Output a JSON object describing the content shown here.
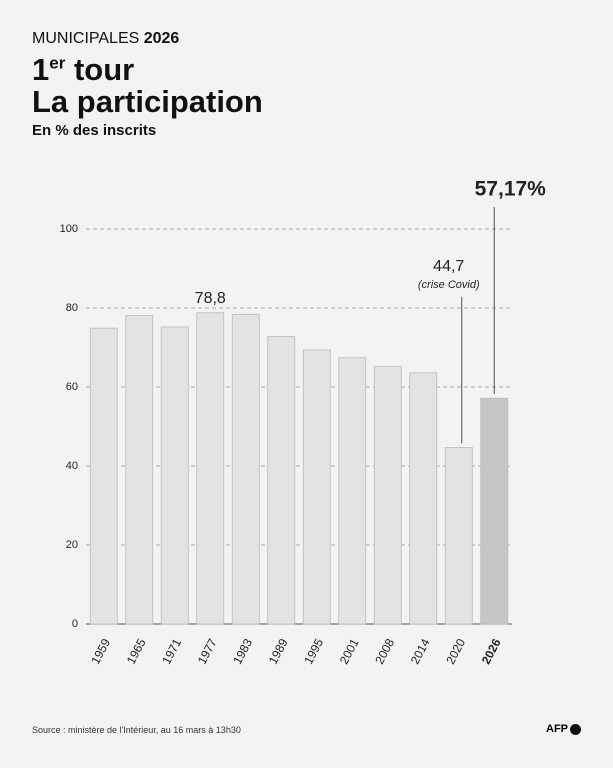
{
  "header": {
    "kicker": "MUNICIPALES",
    "kicker_year": "2026",
    "title_number": "1",
    "title_sup": "er",
    "title_rest": "tour",
    "title2": "La participation",
    "subtitle": "En % des inscrits"
  },
  "chart_data": {
    "type": "bar",
    "categories": [
      "1959",
      "1965",
      "1971",
      "1977",
      "1983",
      "1989",
      "1995",
      "2001",
      "2008",
      "2014",
      "2020",
      "2026"
    ],
    "values": [
      74.9,
      78.1,
      75.2,
      78.8,
      78.4,
      72.8,
      69.4,
      67.4,
      65.2,
      63.6,
      44.7,
      57.17
    ],
    "value_labels": [
      null,
      null,
      null,
      "78,8",
      null,
      null,
      null,
      null,
      null,
      null,
      "44,7",
      "57,17%"
    ],
    "annotation": "(crise Covid)",
    "colors": [
      "#e3e3e3",
      "#e3e3e3",
      "#e3e3e3",
      "#e3e3e3",
      "#e3e3e3",
      "#e3e3e3",
      "#e3e3e3",
      "#e3e3e3",
      "#e3e3e3",
      "#e3e3e3",
      "#e3e3e3",
      "#c6c6c6"
    ],
    "ylim": [
      0,
      100
    ],
    "yticks": [
      0,
      20,
      40,
      60,
      80,
      100
    ],
    "grid": true
  },
  "footer": {
    "source": "Source : ministère de l'Intérieur, au 16 mars à 13h30",
    "logo": "AFP"
  }
}
